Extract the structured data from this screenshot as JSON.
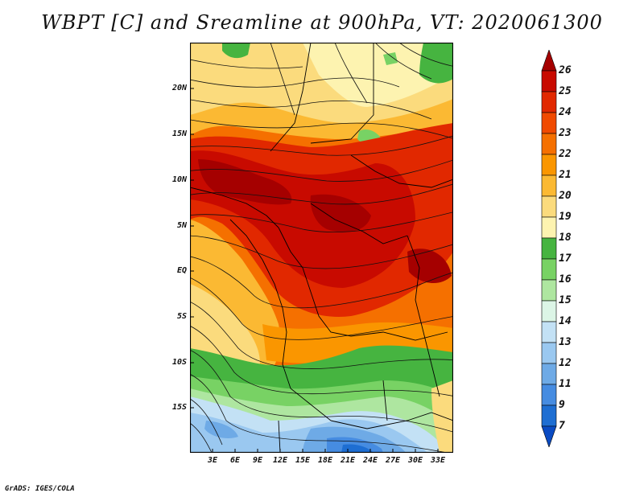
{
  "title": "WBPT [C] and Sreamline at 900hPa, VT: 2020061300",
  "credit": "GrADS: IGES/COLA",
  "map": {
    "variable": "Wet-bulb potential temperature",
    "units": "C",
    "level": "900hPa",
    "valid_time": "2020061300",
    "lat_ticks": [
      "20N",
      "15N",
      "10N",
      "5N",
      "EQ",
      "5S",
      "10S",
      "15S"
    ],
    "lon_ticks": [
      "3E",
      "6E",
      "9E",
      "12E",
      "15E",
      "18E",
      "21E",
      "24E",
      "27E",
      "30E",
      "33E"
    ]
  },
  "colorbar": {
    "levels": [
      "26",
      "25",
      "24",
      "23",
      "22",
      "21",
      "20",
      "19",
      "18",
      "17",
      "16",
      "15",
      "14",
      "13",
      "12",
      "11",
      "9",
      "7"
    ],
    "colors": [
      "#a50000",
      "#c80a00",
      "#e12800",
      "#f04a00",
      "#f57000",
      "#fa9600",
      "#fbb933",
      "#fbdb7d",
      "#fdf3b0",
      "#46b440",
      "#78d264",
      "#aee6a0",
      "#dcf5e6",
      "#c3e1f5",
      "#9ac8f0",
      "#6eaae6",
      "#468ce1",
      "#1e6ed2",
      "#0a4bc3"
    ]
  }
}
